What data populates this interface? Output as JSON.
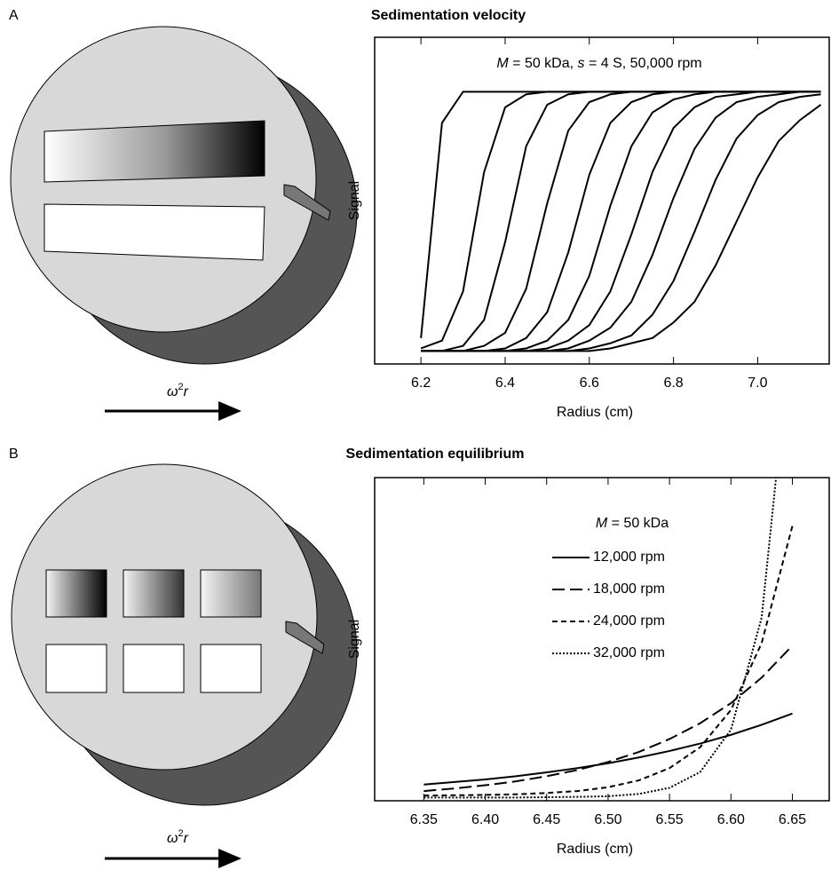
{
  "panels": [
    {
      "label": "A",
      "arrow_label": [
        "ω",
        "2",
        "r"
      ]
    },
    {
      "label": "B",
      "arrow_label": [
        "ω",
        "2",
        "r"
      ]
    }
  ],
  "chart_data": [
    {
      "type": "line",
      "title": "Sedimentation velocity",
      "annotation": [
        "M",
        " = 50 kDa, ",
        "s",
        " = 4 S, 50,000 rpm"
      ],
      "xlabel": "Radius (cm)",
      "ylabel": "Signal",
      "color": "#000000",
      "x": [
        6.2,
        6.25,
        6.3,
        6.35,
        6.4,
        6.45,
        6.5,
        6.55,
        6.6,
        6.65,
        6.7,
        6.75,
        6.8,
        6.85,
        6.9,
        6.95,
        7.0,
        7.05,
        7.1,
        7.15
      ],
      "series": [
        {
          "values": [
            0.05,
            0.88,
            1,
            1,
            1,
            1,
            1,
            1,
            1,
            1,
            1,
            1,
            1,
            1,
            1,
            1,
            1,
            1,
            1,
            1
          ]
        },
        {
          "values": [
            0.01,
            0.04,
            0.23,
            0.69,
            0.94,
            0.99,
            1,
            1,
            1,
            1,
            1,
            1,
            1,
            1,
            1,
            1,
            1,
            1,
            1,
            1
          ]
        },
        {
          "values": [
            0,
            0,
            0.02,
            0.12,
            0.42,
            0.79,
            0.95,
            0.99,
            1,
            1,
            1,
            1,
            1,
            1,
            1,
            1,
            1,
            1,
            1,
            1
          ]
        },
        {
          "values": [
            0,
            0,
            0,
            0.02,
            0.07,
            0.24,
            0.57,
            0.85,
            0.96,
            0.99,
            1,
            1,
            1,
            1,
            1,
            1,
            1,
            1,
            1,
            1
          ]
        },
        {
          "values": [
            0,
            0,
            0,
            0,
            0.01,
            0.05,
            0.15,
            0.38,
            0.68,
            0.88,
            0.96,
            0.99,
            1,
            1,
            1,
            1,
            1,
            1,
            1,
            1
          ]
        },
        {
          "values": [
            0,
            0,
            0,
            0,
            0,
            0.01,
            0.04,
            0.12,
            0.29,
            0.56,
            0.79,
            0.92,
            0.97,
            0.99,
            1,
            1,
            1,
            1,
            1,
            1
          ]
        },
        {
          "values": [
            0,
            0,
            0,
            0,
            0,
            0,
            0.01,
            0.04,
            0.1,
            0.23,
            0.45,
            0.69,
            0.86,
            0.94,
            0.98,
            0.99,
            1,
            1,
            1,
            1
          ]
        },
        {
          "values": [
            0,
            0,
            0,
            0,
            0,
            0,
            0,
            0.01,
            0.04,
            0.09,
            0.19,
            0.37,
            0.59,
            0.78,
            0.9,
            0.96,
            0.98,
            0.99,
            1,
            1
          ]
        },
        {
          "values": [
            0,
            0,
            0,
            0,
            0,
            0,
            0,
            0,
            0.01,
            0.03,
            0.06,
            0.14,
            0.27,
            0.46,
            0.66,
            0.82,
            0.91,
            0.96,
            0.98,
            0.99
          ]
        },
        {
          "values": [
            0,
            0,
            0,
            0,
            0,
            0,
            0,
            0,
            0,
            0.01,
            0.03,
            0.05,
            0.11,
            0.19,
            0.33,
            0.5,
            0.67,
            0.81,
            0.89,
            0.95
          ]
        }
      ],
      "xlim": [
        6.09,
        7.17
      ],
      "ylim": [
        -0.05,
        1.21
      ],
      "xticks": [
        6.2,
        6.4,
        6.6,
        6.8,
        {
          "value": 7,
          "label": "7.0"
        }
      ]
    },
    {
      "type": "line",
      "title": "Sedimentation equilibrium",
      "annotation": [
        "M",
        " = 50 kDa"
      ],
      "xlabel": "Radius (cm)",
      "ylabel": "Signal",
      "color": "#000000",
      "x": [
        6.35,
        6.375,
        6.4,
        6.425,
        6.45,
        6.475,
        6.5,
        6.525,
        6.55,
        6.575,
        6.6,
        6.625,
        6.65
      ],
      "series": [
        {
          "name": "12,000 rpm",
          "line_style": "solid",
          "values": [
            0.05,
            0.058,
            0.066,
            0.076,
            0.088,
            0.101,
            0.116,
            0.134,
            0.154,
            0.177,
            0.204,
            0.235,
            0.27
          ]
        },
        {
          "name": "18,000 rpm",
          "line_style": "long-dash",
          "values": [
            0.03,
            0.038,
            0.048,
            0.06,
            0.076,
            0.095,
            0.12,
            0.151,
            0.191,
            0.24,
            0.302,
            0.381,
            0.48
          ]
        },
        {
          "name": "24,000 rpm",
          "line_style": "short-dash",
          "values": [
            0.016,
            0.017,
            0.018,
            0.02,
            0.024,
            0.03,
            0.042,
            0.063,
            0.101,
            0.166,
            0.281,
            0.488,
            0.85
          ]
        },
        {
          "name": "32,000 rpm",
          "line_style": "dotted",
          "values": [
            0.01,
            0.01,
            0.01,
            0.01,
            0.011,
            0.012,
            0.014,
            0.021,
            0.04,
            0.089,
            0.22,
            0.567,
            1.49
          ]
        }
      ],
      "xlim": [
        6.31,
        6.68
      ],
      "ylim": [
        0,
        1
      ],
      "xticks": [
        6.35,
        {
          "value": 6.4,
          "label": "6.40"
        },
        6.45,
        {
          "value": 6.5,
          "label": "6.50"
        },
        6.55,
        {
          "value": 6.6,
          "label": "6.60"
        },
        6.65
      ]
    }
  ]
}
